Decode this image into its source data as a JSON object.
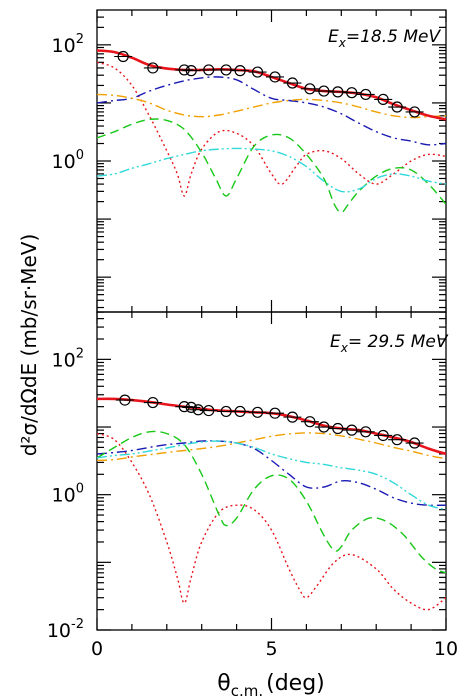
{
  "chart_data": [
    {
      "type": "line",
      "panel_label_main": "E",
      "panel_label_sub": "x",
      "panel_label_rest": "=18.5 MeV",
      "ylabel": "d²σ/dΩdE (mb/sr·MeV)",
      "yscale": "log",
      "ylim": [
        0.01,
        500
      ],
      "xlim": [
        0,
        10
      ],
      "y_ticks": [
        {
          "value": 100,
          "base": "10",
          "exp": "2"
        },
        {
          "value": 1,
          "base": "10",
          "exp": "0"
        }
      ],
      "points": {
        "x": [
          0.75,
          1.6,
          2.5,
          2.7,
          3.2,
          3.7,
          4.1,
          4.6,
          5.1,
          5.6,
          6.1,
          6.5,
          6.9,
          7.3,
          7.7,
          8.2,
          8.6,
          9.1
        ],
        "y": [
          63,
          40,
          37,
          36,
          37,
          37,
          36,
          34,
          28,
          22,
          17.5,
          16,
          15.5,
          15,
          14,
          11.5,
          8.5,
          7
        ]
      },
      "series": [
        {
          "name": "",
          "color": "#e8141c",
          "style": "solid",
          "x": [
            0,
            0.5,
            1,
            1.5,
            2,
            2.5,
            3,
            3.5,
            4,
            4.5,
            5,
            5.5,
            6,
            6.5,
            7,
            7.5,
            8,
            8.5,
            9,
            9.5,
            10
          ],
          "y": [
            80,
            75,
            60,
            45,
            39,
            37,
            37,
            38,
            37,
            35,
            28,
            22,
            17.5,
            16,
            15.5,
            14.5,
            12.5,
            9.5,
            7.5,
            6,
            5.2
          ]
        },
        {
          "name": "",
          "color": "#e8141c",
          "style": "dotted",
          "x": [
            0,
            0.5,
            1,
            1.5,
            2,
            2.3,
            2.5,
            2.7,
            3,
            3.5,
            4,
            4.5,
            5,
            5.3,
            5.7,
            6,
            6.5,
            7,
            7.5,
            8,
            8.5,
            9,
            9.5,
            10
          ],
          "y": [
            50,
            40,
            20,
            6,
            1.5,
            0.6,
            0.25,
            0.6,
            1.6,
            3.2,
            3,
            1.8,
            0.6,
            0.4,
            0.8,
            1.3,
            1.5,
            1.1,
            0.6,
            0.4,
            0.6,
            1,
            1.3,
            1.2
          ]
        },
        {
          "name": "",
          "color": "#1a1ab4",
          "style": "dashdot",
          "x": [
            0,
            0.5,
            1,
            1.5,
            2,
            2.5,
            3,
            3.5,
            4,
            4.5,
            5,
            5.5,
            6,
            6.5,
            7,
            7.5,
            8,
            8.5,
            9,
            9.5,
            10
          ],
          "y": [
            10,
            11,
            12,
            16,
            20,
            24,
            27,
            28,
            25,
            17,
            12,
            11,
            10,
            8.5,
            6.5,
            4.5,
            3.2,
            2.5,
            2.2,
            1.9,
            2
          ]
        },
        {
          "name": "",
          "color": "#f0a000",
          "style": "dashdot",
          "x": [
            0,
            0.5,
            1,
            1.5,
            2,
            2.5,
            3,
            3.5,
            4,
            4.5,
            5,
            5.5,
            6,
            6.5,
            7,
            7.5,
            8,
            8.5,
            9,
            9.5,
            10
          ],
          "y": [
            14,
            13.5,
            12,
            10,
            7.5,
            6.2,
            5.8,
            6.2,
            7.2,
            8.5,
            10,
            11,
            11.5,
            11,
            10,
            8.5,
            7,
            6,
            5.6,
            5.8,
            6
          ]
        },
        {
          "name": "",
          "color": "#18c818",
          "style": "dashed",
          "x": [
            0,
            0.5,
            1,
            1.5,
            2,
            2.5,
            3,
            3.4,
            3.7,
            4,
            4.5,
            5,
            5.5,
            6,
            6.5,
            6.8,
            7,
            7.2,
            7.5,
            8,
            8.5,
            9,
            9.5,
            10
          ],
          "y": [
            2.5,
            3.2,
            4.3,
            5.2,
            5,
            3.5,
            1.4,
            0.5,
            0.25,
            0.5,
            1.8,
            2.8,
            2.5,
            1.3,
            0.5,
            0.18,
            0.13,
            0.18,
            0.3,
            0.55,
            0.75,
            0.7,
            0.4,
            0.18
          ]
        },
        {
          "name": "",
          "color": "#30d8d8",
          "style": "dashdotdot",
          "x": [
            0,
            0.5,
            1,
            1.5,
            2,
            2.5,
            3,
            3.5,
            4,
            4.5,
            5,
            5.5,
            6,
            6.5,
            7,
            7.5,
            8,
            8.5,
            9,
            9.5,
            10
          ],
          "y": [
            0.55,
            0.6,
            0.75,
            0.9,
            1.1,
            1.3,
            1.5,
            1.6,
            1.65,
            1.6,
            1.5,
            1.2,
            0.8,
            0.45,
            0.3,
            0.33,
            0.5,
            0.6,
            0.55,
            0.45,
            0.4
          ]
        }
      ]
    },
    {
      "type": "line",
      "panel_label_main": "E",
      "panel_label_sub": "x",
      "panel_label_rest": "= 29.5 MeV",
      "yscale": "log",
      "ylim": [
        0.01,
        500
      ],
      "xlim": [
        0,
        10
      ],
      "xlabel_main": "θ",
      "xlabel_sub": "c.m.",
      "xlabel_rest": "(deg)",
      "x_ticks": [
        "0",
        "5",
        "10"
      ],
      "y_ticks": [
        {
          "value": 100,
          "base": "10",
          "exp": "2"
        },
        {
          "value": 1,
          "base": "10",
          "exp": "0"
        },
        {
          "value": 0.01,
          "base": "10",
          "exp": "-2"
        }
      ],
      "points": {
        "x": [
          0.8,
          1.6,
          2.5,
          2.7,
          2.9,
          3.2,
          3.7,
          4.1,
          4.6,
          5.1,
          5.6,
          6.1,
          6.5,
          6.9,
          7.3,
          7.7,
          8.2,
          8.6,
          9.1
        ],
        "y": [
          25,
          23,
          20,
          19.5,
          18,
          17.5,
          17,
          17,
          16.5,
          16,
          14,
          12,
          10,
          9.5,
          9,
          8.5,
          7.5,
          6.5,
          5.8
        ]
      },
      "series": [
        {
          "name": "",
          "color": "#e8141c",
          "style": "solid",
          "x": [
            0,
            0.5,
            1,
            1.5,
            2,
            2.5,
            3,
            3.5,
            4,
            4.5,
            5,
            5.5,
            6,
            6.5,
            7,
            7.5,
            8,
            8.5,
            9,
            9.5,
            10
          ],
          "y": [
            26,
            26,
            25,
            23.5,
            21.5,
            20,
            18.5,
            17.5,
            17,
            16.5,
            16,
            14.5,
            12.5,
            10.5,
            9.5,
            9,
            8,
            7,
            6,
            4.8,
            4
          ]
        },
        {
          "name": "",
          "color": "#e8141c",
          "style": "dotted",
          "x": [
            0,
            0.5,
            1,
            1.5,
            2,
            2.3,
            2.5,
            2.7,
            3,
            3.5,
            4,
            4.5,
            5,
            5.5,
            5.8,
            6,
            6.3,
            6.8,
            7.3,
            8,
            8.5,
            9,
            9.5,
            10
          ],
          "y": [
            8,
            6.5,
            3,
            1,
            0.2,
            0.06,
            0.025,
            0.06,
            0.2,
            0.55,
            0.7,
            0.6,
            0.3,
            0.08,
            0.04,
            0.03,
            0.045,
            0.1,
            0.13,
            0.08,
            0.04,
            0.025,
            0.02,
            0.03
          ]
        },
        {
          "name": "",
          "color": "#1a1ab4",
          "style": "dashdot",
          "x": [
            0,
            0.5,
            1,
            1.5,
            2,
            2.5,
            3,
            3.5,
            4,
            4.5,
            5,
            5.5,
            6,
            6.5,
            7,
            7.5,
            8,
            8.5,
            9,
            9.5,
            10
          ],
          "y": [
            4,
            4.2,
            4.5,
            5,
            5.5,
            5.8,
            6.2,
            6.2,
            5.8,
            4.8,
            3.2,
            2,
            1.3,
            1.3,
            1.6,
            1.5,
            1.2,
            0.9,
            0.75,
            0.7,
            0.7
          ]
        },
        {
          "name": "",
          "color": "#f0a000",
          "style": "dashdot",
          "x": [
            0,
            0.5,
            1,
            1.5,
            2,
            2.5,
            3,
            3.5,
            4,
            4.5,
            5,
            5.5,
            6,
            6.5,
            7,
            7.5,
            8,
            8.5,
            9,
            9.5,
            10
          ],
          "y": [
            3.2,
            3.3,
            3.6,
            3.9,
            4.2,
            4.5,
            4.8,
            5.2,
            5.8,
            6.5,
            7.3,
            7.9,
            8.2,
            8,
            7.4,
            6.6,
            5.8,
            5,
            4.4,
            3.8,
            3.4
          ]
        },
        {
          "name": "",
          "color": "#18c818",
          "style": "dashed",
          "x": [
            0,
            0.5,
            1,
            1.5,
            2,
            2.5,
            3,
            3.5,
            3.7,
            4,
            4.5,
            5,
            5.5,
            6,
            6.5,
            6.8,
            7,
            7.3,
            7.8,
            8.3,
            8.8,
            9.3,
            9.7,
            10
          ],
          "y": [
            3.5,
            5,
            7,
            8.5,
            8,
            5.5,
            2,
            0.5,
            0.35,
            0.45,
            1.2,
            1.9,
            1.7,
            0.8,
            0.25,
            0.15,
            0.17,
            0.3,
            0.45,
            0.4,
            0.25,
            0.12,
            0.08,
            0.07
          ]
        },
        {
          "name": "",
          "color": "#30d8d8",
          "style": "dashdotdot",
          "x": [
            0,
            0.5,
            1,
            1.5,
            2,
            2.5,
            3,
            3.5,
            4,
            4.5,
            5,
            5.5,
            6,
            6.5,
            7,
            7.5,
            8,
            8.5,
            9,
            9.5,
            10
          ],
          "y": [
            3.5,
            3.8,
            4,
            4.4,
            4.9,
            5.5,
            6,
            6.2,
            5.8,
            5,
            4,
            3.4,
            3,
            2.8,
            2.5,
            2.3,
            2,
            1.5,
            1,
            0.7,
            0.6
          ]
        }
      ]
    }
  ]
}
